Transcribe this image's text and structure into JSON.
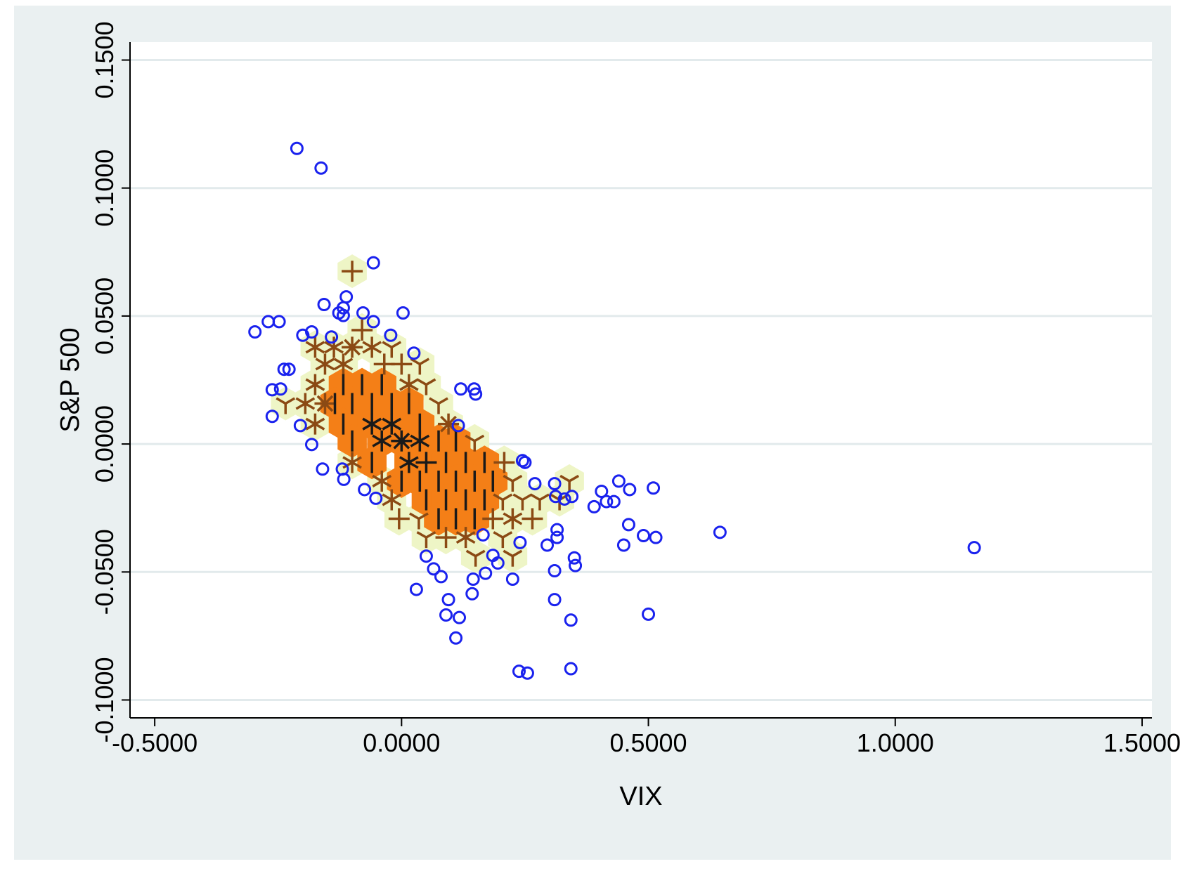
{
  "chart_data": {
    "type": "scatter",
    "title": "",
    "xlabel": "VIX",
    "ylabel": "S&P 500",
    "xlim": [
      -0.55,
      1.52
    ],
    "ylim": [
      -0.107,
      0.157
    ],
    "xticks": [
      -0.5,
      0.0,
      0.5,
      1.0,
      1.5
    ],
    "yticks": [
      -0.1,
      -0.05,
      0.0,
      0.05,
      0.1,
      0.15
    ],
    "x_tick_labels": [
      "-0.5000",
      "0.0000",
      "0.5000",
      "1.0000",
      "1.5000"
    ],
    "y_tick_labels": [
      "-0.1000",
      "-0.0500",
      "0.0000",
      "0.0500",
      "0.1000",
      "0.1500"
    ],
    "grid": "horizontal",
    "legend": "none",
    "colors": {
      "plot_background": "#ffffff",
      "frame_background": "#eaf0f1",
      "gridline": "#e2eaec",
      "outlier_marker": "#1a22ee",
      "density_low_hex": "#eef5c6",
      "density_high_hex": "#f47f17",
      "sunflower_petal_brown": "#8b4a14",
      "sunflower_petal_dark": "#1a1a1a"
    },
    "marker_styles": [
      "hollow-circle",
      "hexagon-sunflower"
    ],
    "series": [
      {
        "marker": "hollow-circle",
        "points": [
          [
            -0.212,
            0.1155
          ],
          [
            -0.163,
            0.1078
          ],
          [
            -0.057,
            0.0708
          ],
          [
            -0.297,
            0.0438
          ],
          [
            -0.27,
            0.0478
          ],
          [
            -0.248,
            0.0478
          ],
          [
            -0.157,
            0.0545
          ],
          [
            -0.112,
            0.0575
          ],
          [
            -0.118,
            0.0532
          ],
          [
            -0.127,
            0.0512
          ],
          [
            -0.118,
            0.0502
          ],
          [
            -0.078,
            0.0512
          ],
          [
            0.003,
            0.0512
          ],
          [
            -0.057,
            0.0478
          ],
          [
            -0.182,
            0.0438
          ],
          [
            -0.2,
            0.0425
          ],
          [
            -0.142,
            0.0418
          ],
          [
            -0.022,
            0.0425
          ],
          [
            0.025,
            0.0355
          ],
          [
            -0.238,
            0.0292
          ],
          [
            -0.228,
            0.0292
          ],
          [
            -0.262,
            0.0212
          ],
          [
            -0.245,
            0.0215
          ],
          [
            0.12,
            0.0215
          ],
          [
            0.147,
            0.0215
          ],
          [
            0.15,
            0.0195
          ],
          [
            -0.262,
            0.0108
          ],
          [
            -0.205,
            0.0072
          ],
          [
            0.115,
            0.0072
          ],
          [
            -0.182,
            -0.0002
          ],
          [
            -0.16,
            -0.0098
          ],
          [
            -0.12,
            -0.0098
          ],
          [
            -0.117,
            -0.0138
          ],
          [
            -0.075,
            -0.0178
          ],
          [
            -0.052,
            -0.0212
          ],
          [
            0.245,
            -0.0065
          ],
          [
            0.25,
            -0.0072
          ],
          [
            0.27,
            -0.0155
          ],
          [
            0.31,
            -0.0155
          ],
          [
            0.312,
            -0.0205
          ],
          [
            0.33,
            -0.0215
          ],
          [
            0.345,
            -0.0205
          ],
          [
            0.315,
            -0.0335
          ],
          [
            0.405,
            -0.0185
          ],
          [
            0.44,
            -0.0145
          ],
          [
            0.462,
            -0.0178
          ],
          [
            0.51,
            -0.0172
          ],
          [
            0.39,
            -0.0245
          ],
          [
            0.415,
            -0.0225
          ],
          [
            0.43,
            -0.0225
          ],
          [
            0.46,
            -0.0315
          ],
          [
            0.45,
            -0.0395
          ],
          [
            0.49,
            -0.0358
          ],
          [
            0.515,
            -0.0365
          ],
          [
            0.645,
            -0.0345
          ],
          [
            1.16,
            -0.0405
          ],
          [
            0.165,
            -0.0355
          ],
          [
            0.24,
            -0.0385
          ],
          [
            0.295,
            -0.0395
          ],
          [
            0.315,
            -0.0365
          ],
          [
            0.35,
            -0.0445
          ],
          [
            0.352,
            -0.0475
          ],
          [
            0.31,
            -0.0495
          ],
          [
            0.05,
            -0.0438
          ],
          [
            0.065,
            -0.0488
          ],
          [
            0.08,
            -0.0518
          ],
          [
            0.145,
            -0.0528
          ],
          [
            0.17,
            -0.0505
          ],
          [
            0.185,
            -0.0435
          ],
          [
            0.195,
            -0.0465
          ],
          [
            0.225,
            -0.0528
          ],
          [
            0.03,
            -0.0568
          ],
          [
            0.095,
            -0.0608
          ],
          [
            0.143,
            -0.0585
          ],
          [
            0.09,
            -0.0668
          ],
          [
            0.117,
            -0.0678
          ],
          [
            0.31,
            -0.0608
          ],
          [
            0.343,
            -0.0688
          ],
          [
            0.5,
            -0.0665
          ],
          [
            0.11,
            -0.0758
          ],
          [
            0.238,
            -0.0888
          ],
          [
            0.255,
            -0.0895
          ],
          [
            0.343,
            -0.0878
          ]
        ]
      },
      {
        "marker": "hexagon-sunflower",
        "cells": [
          [
            -0.1,
            0.0675,
            "low",
            "plus4",
            "brown"
          ],
          [
            -0.08,
            0.0445,
            "low",
            "plus4",
            "brown"
          ],
          [
            -0.175,
            0.0378,
            "low",
            "star6",
            "brown"
          ],
          [
            -0.137,
            0.0378,
            "low",
            "star6",
            "brown"
          ],
          [
            -0.1,
            0.0378,
            "low",
            "star8",
            "brown"
          ],
          [
            -0.06,
            0.0378,
            "low",
            "star6",
            "brown"
          ],
          [
            -0.02,
            0.0378,
            "low",
            "tri",
            "brown"
          ],
          [
            -0.155,
            0.0312,
            "low",
            "star6",
            "brown"
          ],
          [
            -0.118,
            0.0312,
            "low",
            "star6",
            "brown"
          ],
          [
            -0.035,
            0.0312,
            "low",
            "plus4",
            "brown"
          ],
          [
            0.0,
            0.0312,
            "low",
            "plus4",
            "brown"
          ],
          [
            0.037,
            0.0312,
            "low",
            "tri",
            "brown"
          ],
          [
            -0.175,
            0.0232,
            "low",
            "star6",
            "brown"
          ],
          [
            0.015,
            0.0232,
            "low",
            "star6",
            "brown"
          ],
          [
            0.05,
            0.0232,
            "low",
            "tri",
            "brown"
          ],
          [
            -0.235,
            0.0158,
            "low",
            "tri",
            "brown"
          ],
          [
            -0.195,
            0.0158,
            "low",
            "star6",
            "brown"
          ],
          [
            -0.155,
            0.0158,
            "low",
            "star8",
            "brown"
          ],
          [
            0.075,
            0.0158,
            "low",
            "tri",
            "brown"
          ],
          [
            -0.175,
            0.0078,
            "low",
            "star6",
            "brown"
          ],
          [
            0.095,
            0.0078,
            "low",
            "star8",
            "brown"
          ],
          [
            0.148,
            0.0012,
            "low",
            "tri",
            "brown"
          ],
          [
            -0.1,
            -0.0072,
            "low",
            "star6",
            "brown"
          ],
          [
            0.208,
            -0.0072,
            "low",
            "plus4",
            "brown"
          ],
          [
            -0.04,
            -0.0145,
            "low",
            "star6",
            "brown"
          ],
          [
            0.225,
            -0.0145,
            "low",
            "tri",
            "brown"
          ],
          [
            0.34,
            -0.0145,
            "low",
            "tri",
            "brown"
          ],
          [
            -0.02,
            -0.0218,
            "low",
            "star6",
            "brown"
          ],
          [
            0.205,
            -0.0218,
            "low",
            "tri",
            "brown"
          ],
          [
            0.245,
            -0.0218,
            "low",
            "tri",
            "brown"
          ],
          [
            0.28,
            -0.0218,
            "low",
            "tri",
            "brown"
          ],
          [
            0.32,
            -0.0218,
            "low",
            "tri",
            "brown"
          ],
          [
            -0.005,
            -0.0292,
            "low",
            "plus4",
            "brown"
          ],
          [
            0.035,
            -0.0292,
            "low",
            "tri",
            "brown"
          ],
          [
            0.185,
            -0.0292,
            "low",
            "plus4",
            "brown"
          ],
          [
            0.225,
            -0.0292,
            "low",
            "star6",
            "brown"
          ],
          [
            0.265,
            -0.0292,
            "low",
            "plus4",
            "brown"
          ],
          [
            0.05,
            -0.0365,
            "low",
            "tri",
            "brown"
          ],
          [
            0.09,
            -0.0365,
            "low",
            "plus4",
            "brown"
          ],
          [
            0.13,
            -0.0365,
            "low",
            "star6",
            "brown"
          ],
          [
            0.205,
            -0.0365,
            "low",
            "tri",
            "brown"
          ],
          [
            0.15,
            -0.0438,
            "low",
            "tri",
            "brown"
          ],
          [
            0.225,
            -0.0438,
            "low",
            "tri",
            "brown"
          ],
          [
            -0.118,
            0.0232,
            "high",
            "bar",
            "dark"
          ],
          [
            -0.08,
            0.0232,
            "high",
            "bar",
            "dark"
          ],
          [
            -0.04,
            0.0232,
            "high",
            "bar",
            "dark"
          ],
          [
            -0.135,
            0.0158,
            "high",
            "bar",
            "dark"
          ],
          [
            -0.1,
            0.0158,
            "high",
            "bar",
            "dark"
          ],
          [
            -0.06,
            0.0158,
            "high",
            "bar",
            "dark"
          ],
          [
            -0.02,
            0.0158,
            "high",
            "bar",
            "dark"
          ],
          [
            0.015,
            0.0158,
            "high",
            "bar",
            "dark"
          ],
          [
            -0.118,
            0.0078,
            "high",
            "bar",
            "dark"
          ],
          [
            -0.06,
            0.0078,
            "high",
            "star6",
            "dark"
          ],
          [
            -0.02,
            0.0078,
            "high",
            "star6",
            "dark"
          ],
          [
            0.037,
            0.0078,
            "high",
            "bar",
            "dark"
          ],
          [
            -0.1,
            0.0012,
            "high",
            "bar",
            "dark"
          ],
          [
            -0.04,
            0.0012,
            "high",
            "star6",
            "dark"
          ],
          [
            0.0,
            0.0012,
            "high",
            "star8",
            "dark"
          ],
          [
            0.037,
            0.0012,
            "high",
            "star6",
            "dark"
          ],
          [
            0.075,
            0.0012,
            "high",
            "bar",
            "dark"
          ],
          [
            0.11,
            0.0012,
            "high",
            "bar",
            "dark"
          ],
          [
            -0.06,
            -0.0072,
            "high",
            "bar",
            "dark"
          ],
          [
            0.015,
            -0.0072,
            "high",
            "star6",
            "dark"
          ],
          [
            0.05,
            -0.0072,
            "high",
            "plus4",
            "dark"
          ],
          [
            0.09,
            -0.0072,
            "high",
            "bar",
            "dark"
          ],
          [
            0.13,
            -0.0072,
            "high",
            "bar",
            "dark"
          ],
          [
            0.168,
            -0.0072,
            "high",
            "bar",
            "dark"
          ],
          [
            0.0,
            -0.0145,
            "high",
            "bar",
            "dark"
          ],
          [
            0.037,
            -0.0145,
            "high",
            "bar",
            "dark"
          ],
          [
            0.075,
            -0.0145,
            "high",
            "bar",
            "dark"
          ],
          [
            0.11,
            -0.0145,
            "high",
            "bar",
            "dark"
          ],
          [
            0.148,
            -0.0145,
            "high",
            "bar",
            "dark"
          ],
          [
            0.185,
            -0.0145,
            "high",
            "bar",
            "dark"
          ],
          [
            0.05,
            -0.0218,
            "high",
            "bar",
            "dark"
          ],
          [
            0.09,
            -0.0218,
            "high",
            "bar",
            "dark"
          ],
          [
            0.13,
            -0.0218,
            "high",
            "bar",
            "dark"
          ],
          [
            0.168,
            -0.0218,
            "high",
            "bar",
            "dark"
          ],
          [
            0.075,
            -0.0292,
            "high",
            "bar",
            "dark"
          ],
          [
            0.11,
            -0.0292,
            "high",
            "bar",
            "dark"
          ],
          [
            0.148,
            -0.0292,
            "high",
            "bar",
            "dark"
          ]
        ]
      }
    ]
  }
}
